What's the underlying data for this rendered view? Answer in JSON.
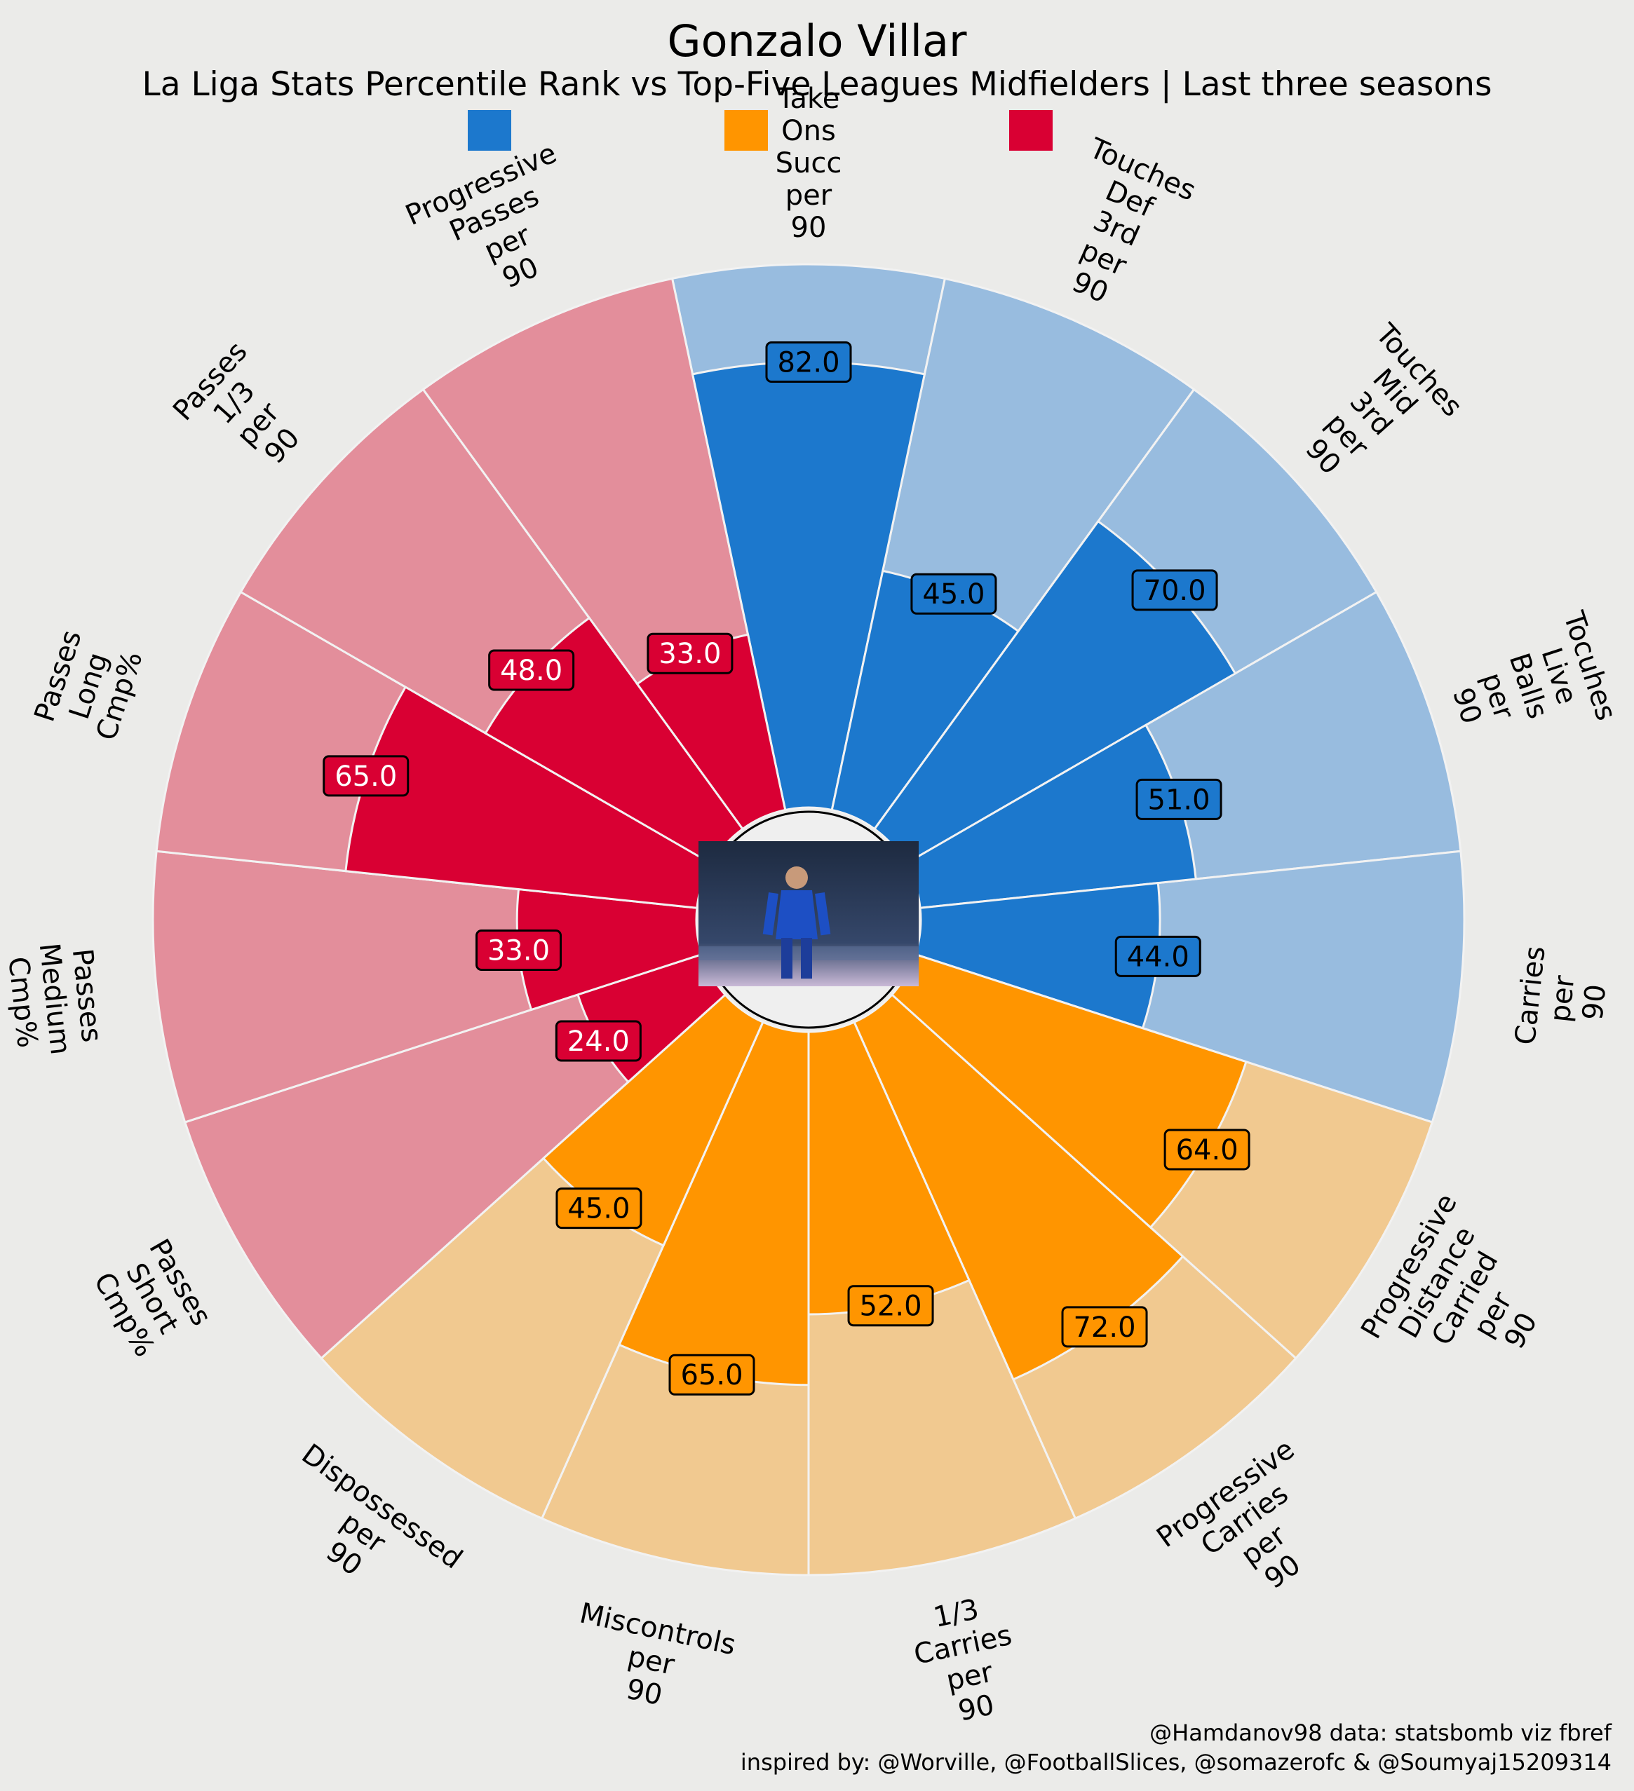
{
  "title": "Gonzalo Villar",
  "subtitle": "La Liga Stats Percentile Rank vs Top-Five Leagues Midfielders | Last three seasons",
  "credits": {
    "line1": "@Hamdanov98 data: statsbomb viz fbref",
    "line2": "inspired by: @Worville, @FootballSlices, @somazerofc & @Soumyaj15209314"
  },
  "legend": [
    {
      "name": "",
      "color": "#1c78cd"
    },
    {
      "name": "",
      "color": "#ff9500"
    },
    {
      "name": "",
      "color": "#d90033"
    }
  ],
  "colors": {
    "background": "#ebebe9",
    "blue_bar": "#1c78cd",
    "blue_bg": "#98bcdf",
    "orange_bar": "#ff9500",
    "orange_bg": "#f1c990",
    "red_bar": "#d90033",
    "red_bg": "#e38e9b"
  },
  "center_image": "player-photo",
  "chart_data": {
    "type": "polar-bar",
    "rlim": [
      0,
      100
    ],
    "categories": [
      {
        "label": "Take Ons Succ per 90",
        "value": 82.0,
        "group": "blue"
      },
      {
        "label": "Touches Def 3rd per 90",
        "value": 45.0,
        "group": "blue"
      },
      {
        "label": "Touches Mid 3rd per 90",
        "value": 70.0,
        "group": "blue"
      },
      {
        "label": "Tocuhes Live Balls per 90",
        "value": 51.0,
        "group": "blue"
      },
      {
        "label": "Carries per 90",
        "value": 44.0,
        "group": "blue"
      },
      {
        "label": "Progressive Distance Carried per 90",
        "value": 64.0,
        "group": "orange"
      },
      {
        "label": "Progressive Carries per 90",
        "value": 72.0,
        "group": "orange"
      },
      {
        "label": "1/3 Carries per 90",
        "value": 52.0,
        "group": "orange"
      },
      {
        "label": "Miscontrols per 90",
        "value": 65.0,
        "group": "orange"
      },
      {
        "label": "Dispossessed per 90",
        "value": 45.0,
        "group": "orange"
      },
      {
        "label": "Passes Short Cmp%",
        "value": 24.0,
        "group": "red"
      },
      {
        "label": "Passes Medium Cmp%",
        "value": 33.0,
        "group": "red"
      },
      {
        "label": "Passes Long Cmp%",
        "value": 65.0,
        "group": "red"
      },
      {
        "label": "Passes 1/3 per 90",
        "value": 48.0,
        "group": "red"
      },
      {
        "label": "Progressive Passes per 90",
        "value": 33.0,
        "group": "red"
      }
    ]
  }
}
